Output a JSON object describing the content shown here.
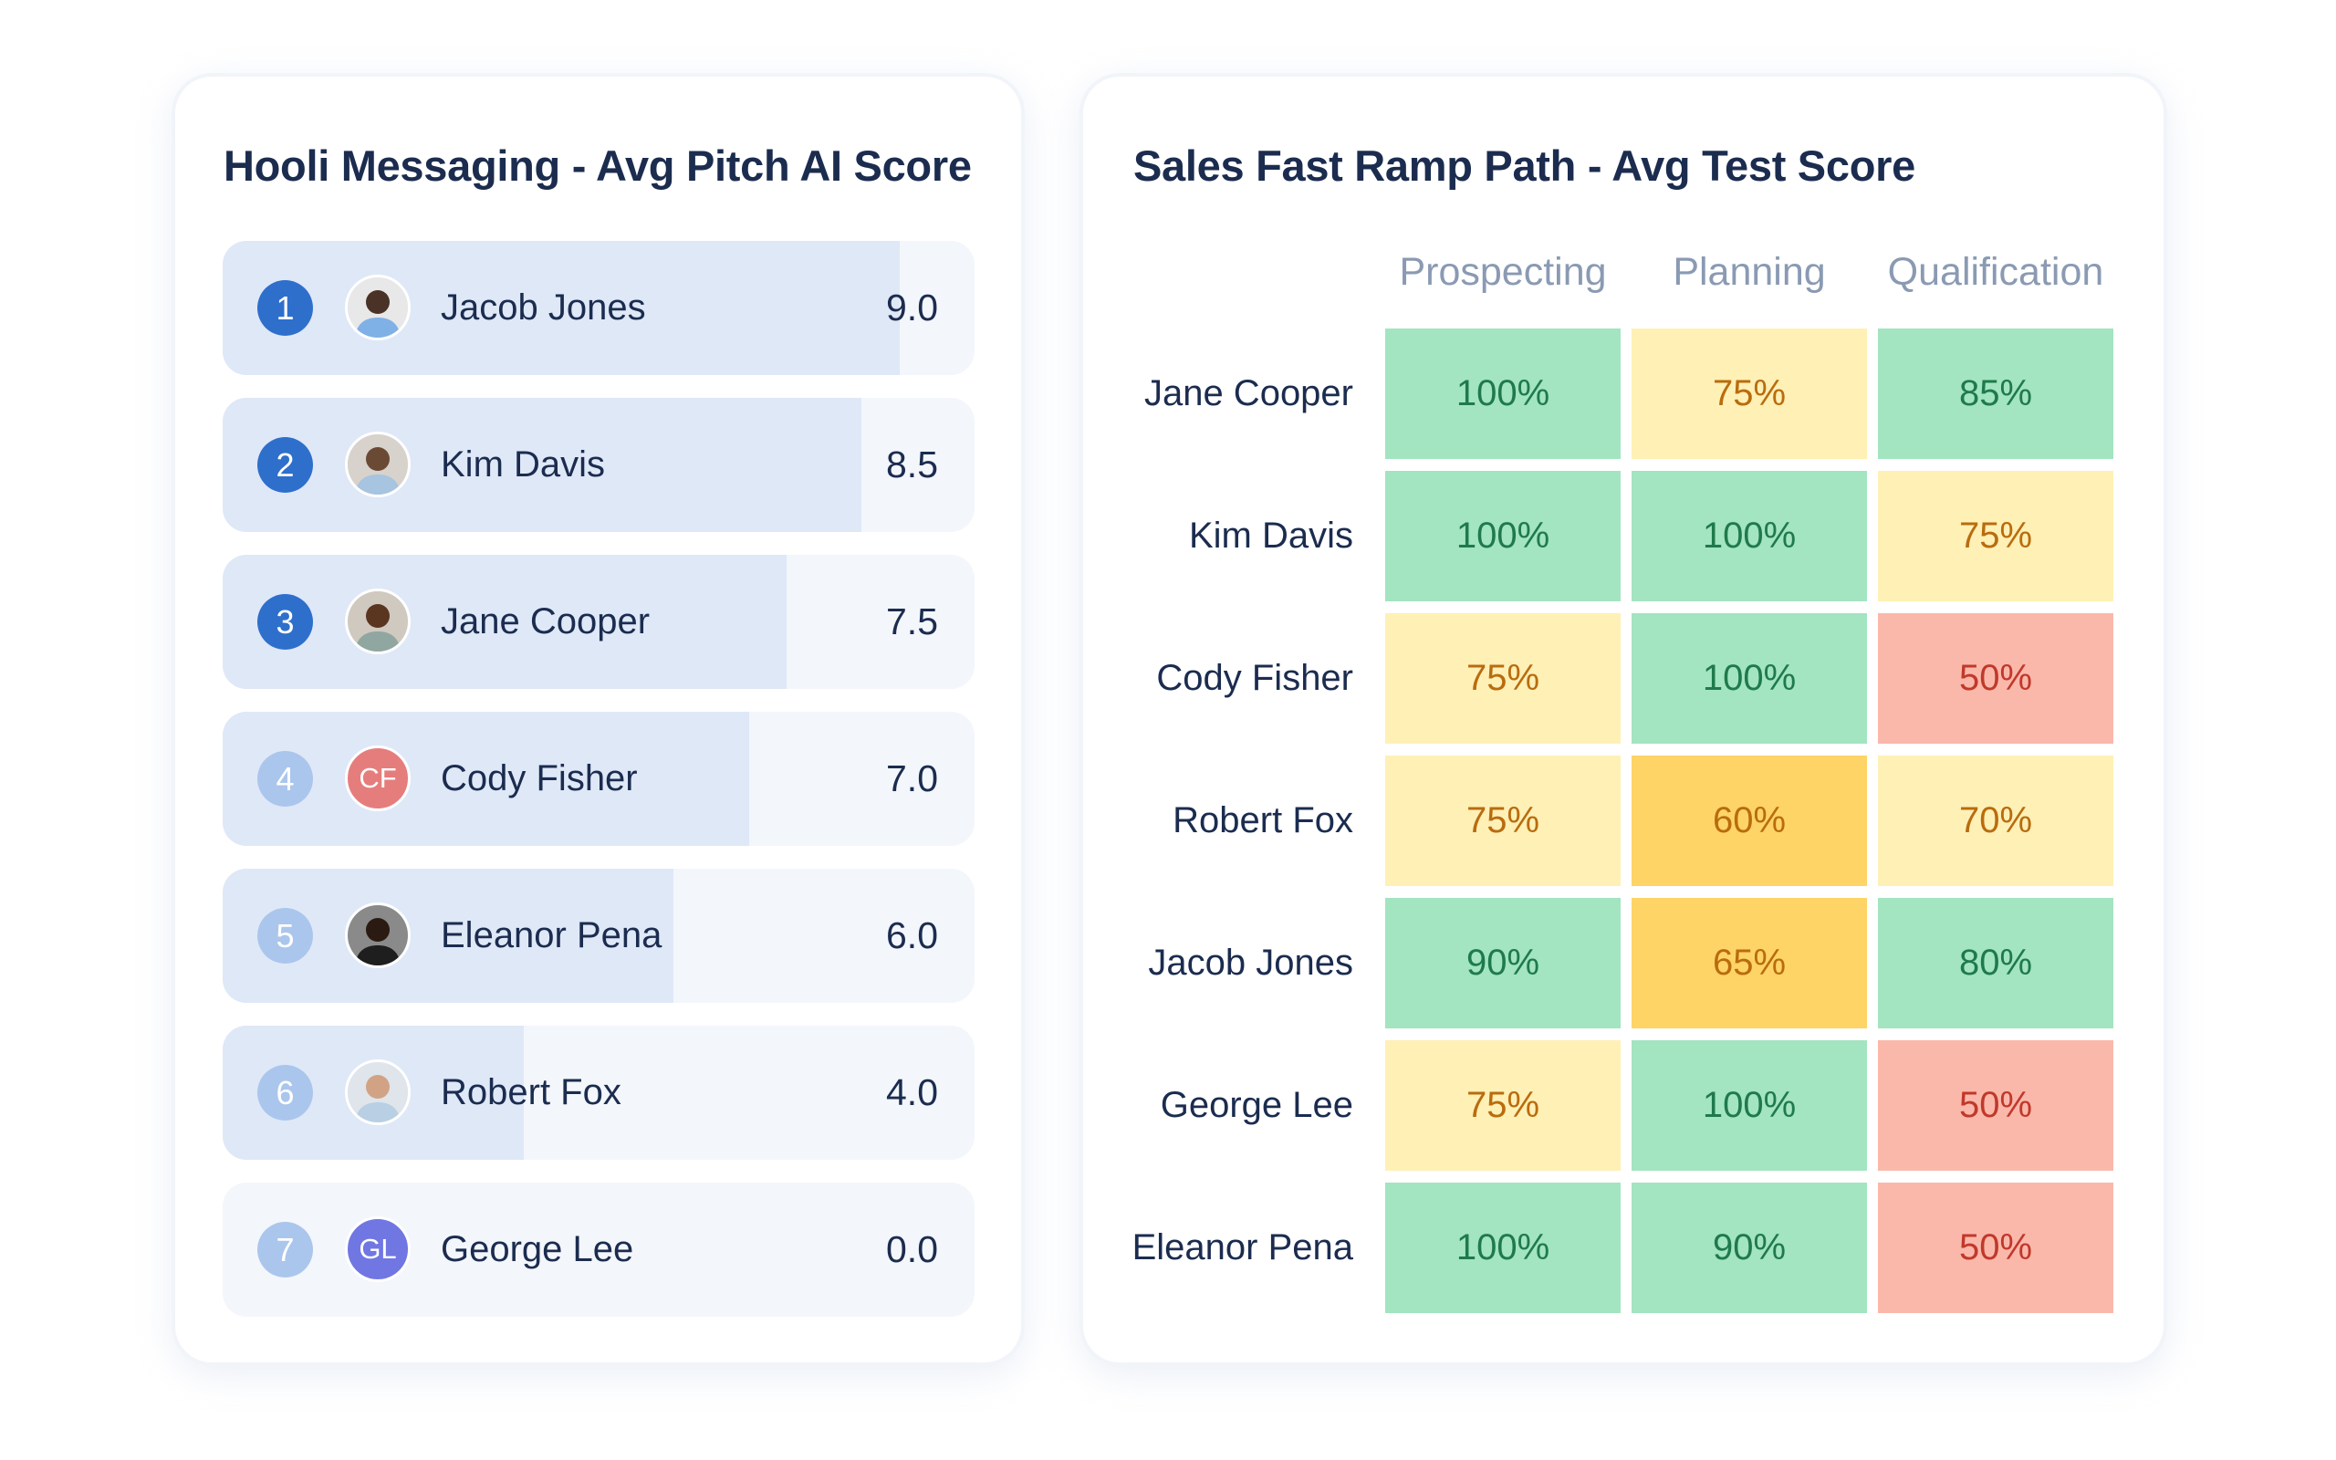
{
  "leaderboard": {
    "title": "Hooli Messaging - Avg Pitch AI Score",
    "max_score": 10,
    "rows": [
      {
        "rank": "1",
        "name": "Jacob Jones",
        "score": "9.0",
        "value": 9.0,
        "avatar": {
          "type": "photo",
          "icon": "person-photo-icon"
        },
        "rank_color": "#2e6fcc"
      },
      {
        "rank": "2",
        "name": "Kim Davis",
        "score": "8.5",
        "value": 8.5,
        "avatar": {
          "type": "photo",
          "icon": "person-photo-icon"
        },
        "rank_color": "#2e6fcc"
      },
      {
        "rank": "3",
        "name": "Jane Cooper",
        "score": "7.5",
        "value": 7.5,
        "avatar": {
          "type": "photo",
          "icon": "person-photo-icon"
        },
        "rank_color": "#2e6fcc"
      },
      {
        "rank": "4",
        "name": "Cody Fisher",
        "score": "7.0",
        "value": 7.0,
        "avatar": {
          "type": "initials",
          "initials": "CF",
          "color": "#e67d7d"
        },
        "rank_color": "#abc6ec"
      },
      {
        "rank": "5",
        "name": "Eleanor Pena",
        "score": "6.0",
        "value": 6.0,
        "avatar": {
          "type": "photo",
          "icon": "person-photo-icon"
        },
        "rank_color": "#abc6ec"
      },
      {
        "rank": "6",
        "name": "Robert Fox",
        "score": "4.0",
        "value": 4.0,
        "avatar": {
          "type": "photo",
          "icon": "person-photo-icon"
        },
        "rank_color": "#abc6ec"
      },
      {
        "rank": "7",
        "name": "George Lee",
        "score": "0.0",
        "value": 0.0,
        "avatar": {
          "type": "initials",
          "initials": "GL",
          "color": "#7077e3"
        },
        "rank_color": "#abc6ec"
      }
    ]
  },
  "heatmap_card": {
    "title": "Sales Fast Ramp Path - Avg Test Score"
  },
  "colors": {
    "green_bg": "#a3e4c1",
    "green_text": "#1f7a4b",
    "lightyellow_bg": "#fff0b6",
    "yellow_text": "#b96c0e",
    "yellow_bg": "#fed466",
    "red_bg": "#fab8ab",
    "red_text": "#c0392b"
  },
  "chart_data": [
    {
      "type": "bar",
      "title": "Hooli Messaging - Avg Pitch AI Score",
      "orientation": "horizontal",
      "categories": [
        "Jacob Jones",
        "Kim Davis",
        "Jane Cooper",
        "Cody Fisher",
        "Eleanor Pena",
        "Robert Fox",
        "George Lee"
      ],
      "values": [
        9.0,
        8.5,
        7.5,
        7.0,
        6.0,
        4.0,
        0.0
      ],
      "xlim": [
        0,
        10
      ],
      "xlabel": "",
      "ylabel": ""
    },
    {
      "type": "heatmap",
      "title": "Sales Fast Ramp Path - Avg Test Score",
      "columns": [
        "Prospecting",
        "Planning",
        "Qualification"
      ],
      "rows": [
        "Jane Cooper",
        "Kim Davis",
        "Cody Fisher",
        "Robert Fox",
        "Jacob Jones",
        "George Lee",
        "Eleanor Pena"
      ],
      "values": [
        [
          100,
          75,
          85
        ],
        [
          100,
          100,
          75
        ],
        [
          75,
          100,
          50
        ],
        [
          75,
          60,
          70
        ],
        [
          90,
          65,
          80
        ],
        [
          75,
          100,
          50
        ],
        [
          100,
          90,
          50
        ]
      ],
      "labels": [
        [
          "100%",
          "75%",
          "85%"
        ],
        [
          "100%",
          "100%",
          "75%"
        ],
        [
          "75%",
          "100%",
          "50%"
        ],
        [
          "75%",
          "60%",
          "70%"
        ],
        [
          "90%",
          "65%",
          "80%"
        ],
        [
          "75%",
          "100%",
          "50%"
        ],
        [
          "100%",
          "90%",
          "50%"
        ]
      ],
      "unit": "%"
    }
  ]
}
